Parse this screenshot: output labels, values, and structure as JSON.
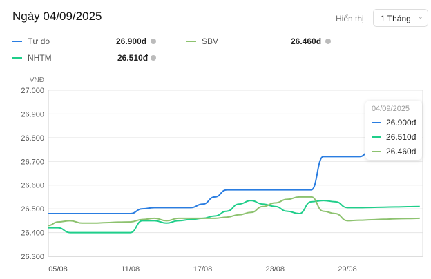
{
  "header": {
    "title": "Ngày 04/09/2025",
    "show_label": "Hiển thị",
    "period": "1 Tháng"
  },
  "legend": [
    {
      "name": "Tự do",
      "value": "26.900đ",
      "color": "#2a7de1"
    },
    {
      "name": "SBV",
      "value": "26.460đ",
      "color": "#8dc26f"
    },
    {
      "name": "NHTM",
      "value": "26.510đ",
      "color": "#1fce8a"
    }
  ],
  "tooltip": {
    "date": "04/09/2025",
    "values": [
      "26.900đ",
      "26.510đ",
      "26.460đ"
    ]
  },
  "chart_data": {
    "type": "line",
    "ylabel": "VNĐ",
    "ylim": [
      26300,
      27000
    ],
    "yticks": [
      "27.000",
      "26.900",
      "26.800",
      "26.700",
      "26.600",
      "26.500",
      "26.400",
      "26.300"
    ],
    "xticks": [
      "05/08",
      "11/08",
      "17/08",
      "23/08",
      "29/08"
    ],
    "x": [
      "04/08",
      "05/08",
      "06/08",
      "07/08",
      "08/08",
      "09/08",
      "10/08",
      "11/08",
      "12/08",
      "13/08",
      "14/08",
      "15/08",
      "16/08",
      "17/08",
      "18/08",
      "19/08",
      "20/08",
      "21/08",
      "22/08",
      "23/08",
      "24/08",
      "25/08",
      "26/08",
      "27/08",
      "28/08",
      "29/08",
      "30/08",
      "31/08",
      "01/09",
      "02/09",
      "03/09",
      "04/09"
    ],
    "series": [
      {
        "name": "Tự do",
        "color": "#2a7de1",
        "values": [
          26480,
          26480,
          26480,
          26480,
          26480,
          26480,
          26480,
          26480,
          26500,
          26505,
          26505,
          26505,
          26505,
          26520,
          26550,
          26580,
          26580,
          26580,
          26580,
          26580,
          26580,
          26580,
          26580,
          26720,
          26720,
          26720,
          26720,
          26750,
          26800,
          26850,
          26880,
          26900
        ]
      },
      {
        "name": "NHTM",
        "color": "#1fce8a",
        "values": [
          26420,
          26420,
          26400,
          26400,
          26400,
          26400,
          26400,
          26400,
          26450,
          26450,
          26440,
          26450,
          26455,
          26460,
          26470,
          26490,
          26520,
          26535,
          26520,
          26510,
          26490,
          26480,
          26530,
          26535,
          26530,
          26505,
          26505,
          26506,
          26507,
          26508,
          26509,
          26510
        ]
      },
      {
        "name": "SBV",
        "color": "#8dc26f",
        "values": [
          26430,
          26445,
          26450,
          26440,
          26440,
          26442,
          26444,
          26445,
          26455,
          26460,
          26450,
          26460,
          26460,
          26460,
          26460,
          26465,
          26475,
          26485,
          26510,
          26525,
          26540,
          26550,
          26550,
          26490,
          26480,
          26450,
          26452,
          26454,
          26456,
          26458,
          26459,
          26460
        ]
      }
    ]
  }
}
